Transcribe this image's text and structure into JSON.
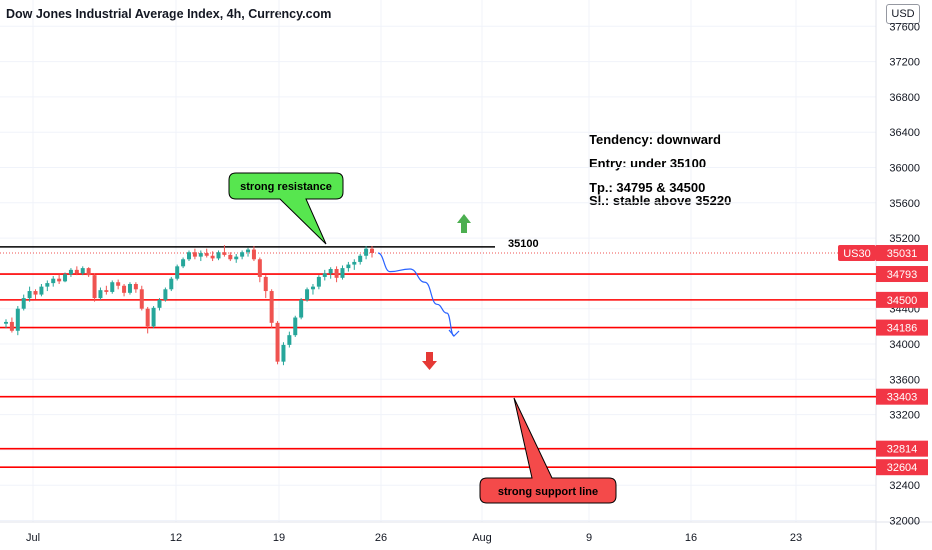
{
  "header": {
    "title": "Dow Jones Industrial Average Index, 4h, Currency.com",
    "currency": "USD"
  },
  "annotations": {
    "tendency": "Tendency: downward",
    "entry": "Entry: under 35100",
    "tp": "Tp.: 34795 & 34500",
    "sl": "Sl.: stable above 35220",
    "resistance_callout": "strong resistance",
    "support_callout": "strong support line",
    "resistance_level_label": "35100"
  },
  "colors": {
    "bull": "#26a69a",
    "bear": "#ef5350",
    "level_line": "#ff0000",
    "tag_bg": "#f23645",
    "callout_green": "#57e64f",
    "callout_red": "#f44a4a",
    "arrow_up": "#4caf50",
    "arrow_down": "#e53935",
    "path_blue": "#2962ff"
  },
  "chart_data": {
    "type": "candlestick",
    "symbol_tag": "US30",
    "current_price": 35031,
    "ylim": [
      31950,
      37800
    ],
    "y_ticks": [
      32000,
      32400,
      32800,
      33200,
      33600,
      34000,
      34400,
      34800,
      35200,
      35600,
      36000,
      36400,
      36800,
      37200,
      37600
    ],
    "x_ticks": [
      "Jul",
      "12",
      "19",
      "26",
      "Aug",
      "9",
      "16",
      "23"
    ],
    "horizontal_levels": [
      {
        "value": 35100,
        "color": "black",
        "label": "35100"
      },
      {
        "value": 34793,
        "color": "red",
        "label": "34793"
      },
      {
        "value": 34500,
        "color": "red",
        "label": "34500"
      },
      {
        "value": 34186,
        "color": "red",
        "label": "34186"
      },
      {
        "value": 33403,
        "color": "red",
        "label": "33403"
      },
      {
        "value": 32814,
        "color": "red",
        "label": "32814"
      },
      {
        "value": 32604,
        "color": "red",
        "label": "32604"
      }
    ],
    "path_points": [
      35031,
      34820,
      34850,
      34700,
      34450,
      34350,
      34090
    ],
    "candles": [
      [
        34230,
        34280,
        34180,
        34250
      ],
      [
        34250,
        34300,
        34130,
        34150
      ],
      [
        34150,
        34430,
        34100,
        34400
      ],
      [
        34400,
        34560,
        34380,
        34520
      ],
      [
        34520,
        34650,
        34480,
        34600
      ],
      [
        34600,
        34620,
        34510,
        34560
      ],
      [
        34560,
        34680,
        34540,
        34650
      ],
      [
        34650,
        34720,
        34600,
        34690
      ],
      [
        34690,
        34770,
        34650,
        34740
      ],
      [
        34740,
        34790,
        34680,
        34710
      ],
      [
        34710,
        34810,
        34700,
        34790
      ],
      [
        34790,
        34860,
        34760,
        34840
      ],
      [
        34840,
        34880,
        34780,
        34800
      ],
      [
        34800,
        34880,
        34780,
        34860
      ],
      [
        34860,
        34870,
        34760,
        34780
      ],
      [
        34780,
        34800,
        34480,
        34520
      ],
      [
        34520,
        34640,
        34500,
        34610
      ],
      [
        34610,
        34660,
        34560,
        34590
      ],
      [
        34590,
        34720,
        34570,
        34700
      ],
      [
        34700,
        34730,
        34620,
        34660
      ],
      [
        34660,
        34680,
        34540,
        34580
      ],
      [
        34580,
        34700,
        34560,
        34680
      ],
      [
        34680,
        34700,
        34580,
        34620
      ],
      [
        34620,
        34660,
        34380,
        34400
      ],
      [
        34400,
        34420,
        34120,
        34200
      ],
      [
        34200,
        34430,
        34180,
        34410
      ],
      [
        34410,
        34520,
        34380,
        34500
      ],
      [
        34500,
        34640,
        34480,
        34620
      ],
      [
        34620,
        34760,
        34600,
        34740
      ],
      [
        34740,
        34900,
        34720,
        34880
      ],
      [
        34880,
        34980,
        34860,
        34960
      ],
      [
        34960,
        35060,
        34940,
        35040
      ],
      [
        35040,
        35080,
        34960,
        34990
      ],
      [
        34990,
        35060,
        34940,
        35030
      ],
      [
        35030,
        35080,
        34980,
        35000
      ],
      [
        35000,
        35050,
        34940,
        34970
      ],
      [
        34970,
        35060,
        34950,
        35040
      ],
      [
        35040,
        35120,
        34990,
        35010
      ],
      [
        35010,
        35040,
        34940,
        34960
      ],
      [
        34960,
        35020,
        34920,
        34990
      ],
      [
        34990,
        35060,
        34960,
        35040
      ],
      [
        35040,
        35090,
        34990,
        35070
      ],
      [
        35070,
        35110,
        34940,
        34960
      ],
      [
        34960,
        34980,
        34700,
        34760
      ],
      [
        34760,
        34780,
        34520,
        34600
      ],
      [
        34600,
        34620,
        34180,
        34240
      ],
      [
        34240,
        34260,
        33770,
        33800
      ],
      [
        33800,
        34020,
        33760,
        33990
      ],
      [
        33990,
        34140,
        33960,
        34100
      ],
      [
        34100,
        34320,
        34080,
        34300
      ],
      [
        34300,
        34520,
        34280,
        34500
      ],
      [
        34500,
        34640,
        34480,
        34620
      ],
      [
        34620,
        34680,
        34560,
        34650
      ],
      [
        34650,
        34780,
        34620,
        34760
      ],
      [
        34760,
        34840,
        34720,
        34800
      ],
      [
        34800,
        34870,
        34740,
        34850
      ],
      [
        34850,
        34880,
        34700,
        34750
      ],
      [
        34750,
        34890,
        34730,
        34860
      ],
      [
        34860,
        34930,
        34820,
        34900
      ],
      [
        34900,
        34960,
        34840,
        34930
      ],
      [
        34930,
        35020,
        34900,
        35000
      ],
      [
        35000,
        35110,
        34960,
        35080
      ],
      [
        35080,
        35110,
        34980,
        35031
      ]
    ]
  }
}
